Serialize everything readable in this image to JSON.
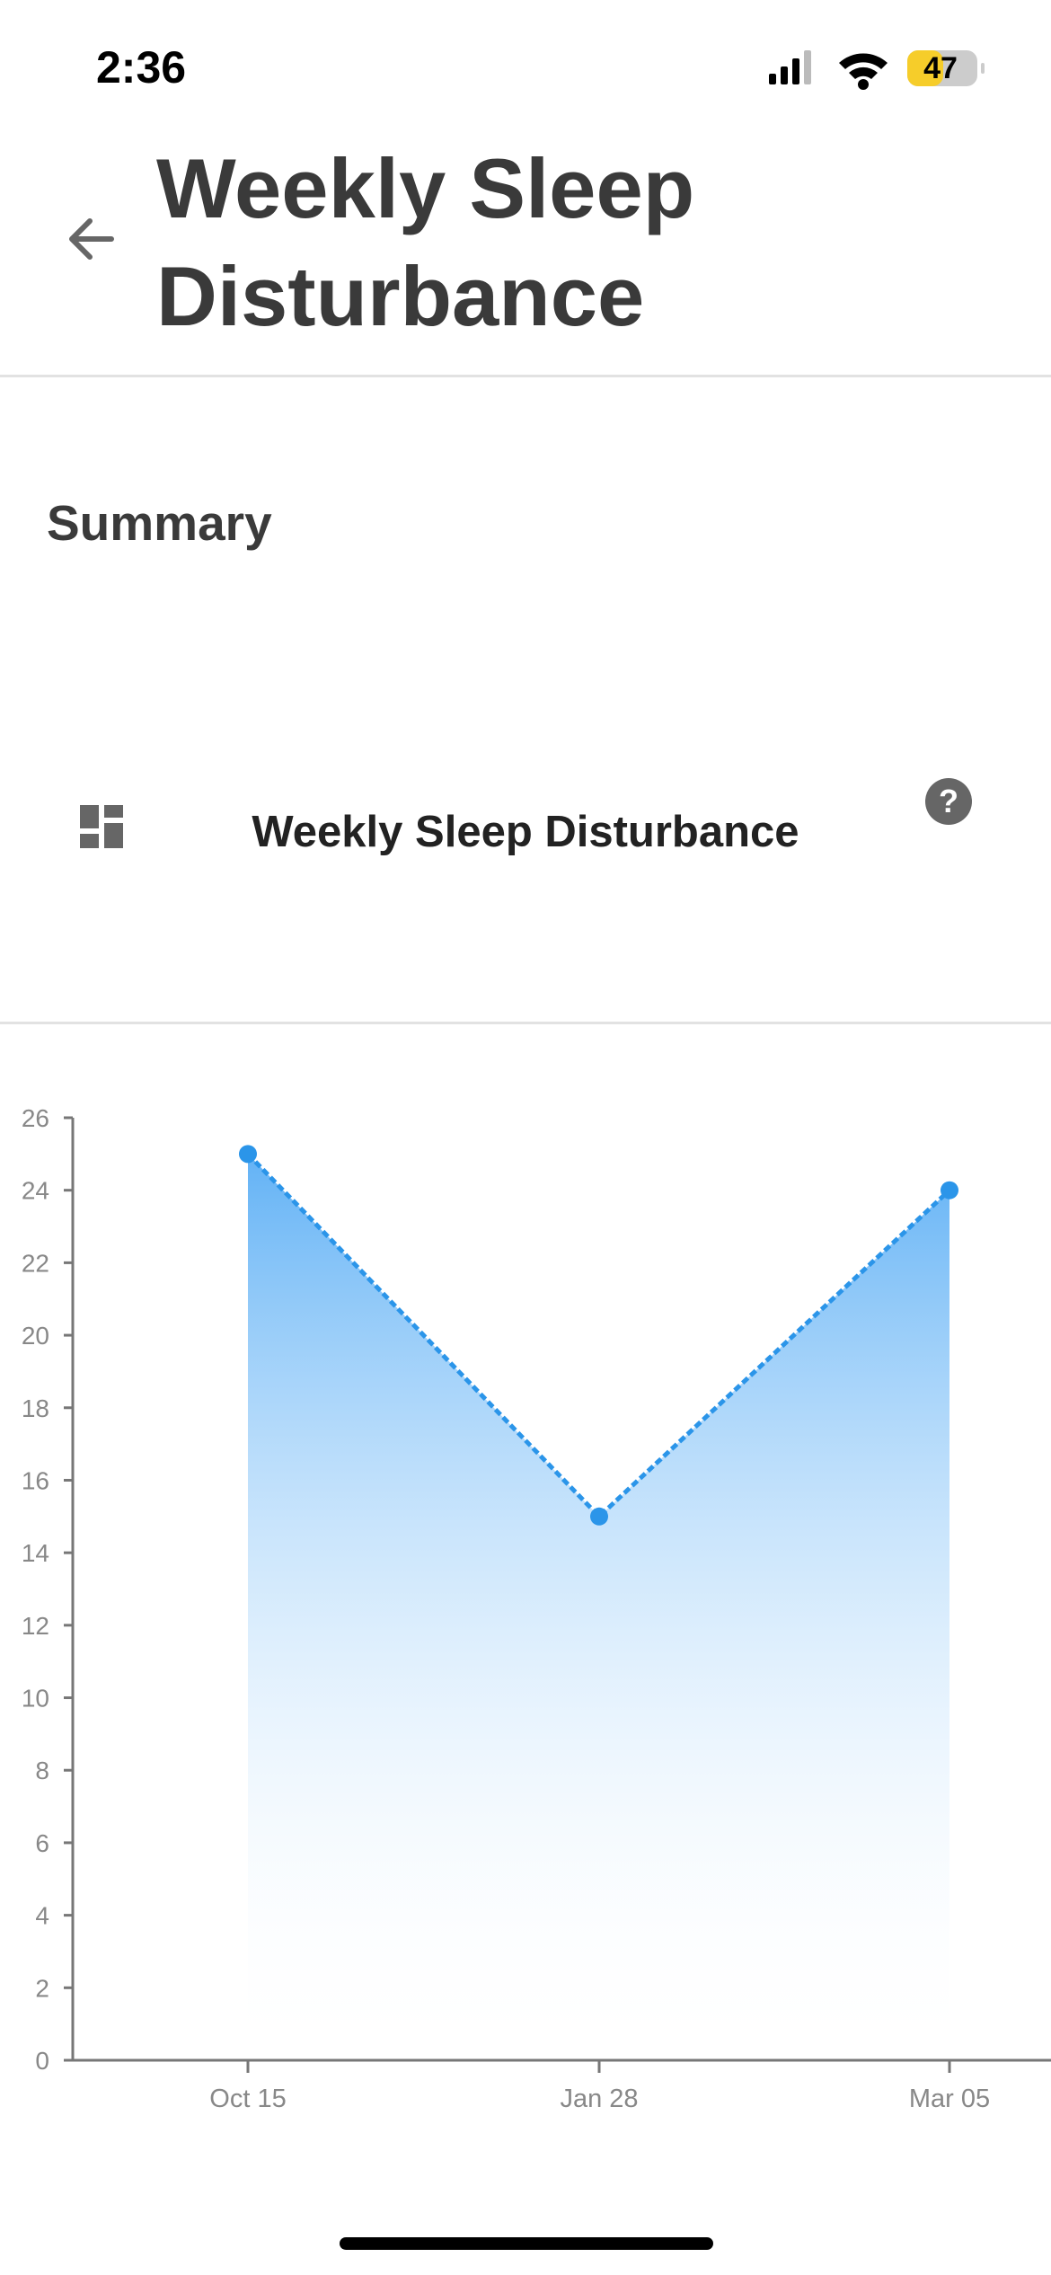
{
  "status": {
    "time": "2:36",
    "battery": "47"
  },
  "header": {
    "title": "Weekly Sleep Disturbance"
  },
  "section": {
    "heading": "Summary"
  },
  "chart_data": {
    "type": "line",
    "title": "Weekly Sleep Disturbance",
    "categories": [
      "Oct 15",
      "Jan 28",
      "Mar 05"
    ],
    "series": [
      {
        "color": "#2b95e9",
        "values": [
          25,
          15,
          24
        ]
      }
    ],
    "ylim": [
      0,
      26
    ],
    "yticks": [
      0,
      2,
      4,
      6,
      8,
      10,
      12,
      14,
      16,
      18,
      20,
      22,
      24,
      26
    ],
    "area": true,
    "dashed": true
  }
}
